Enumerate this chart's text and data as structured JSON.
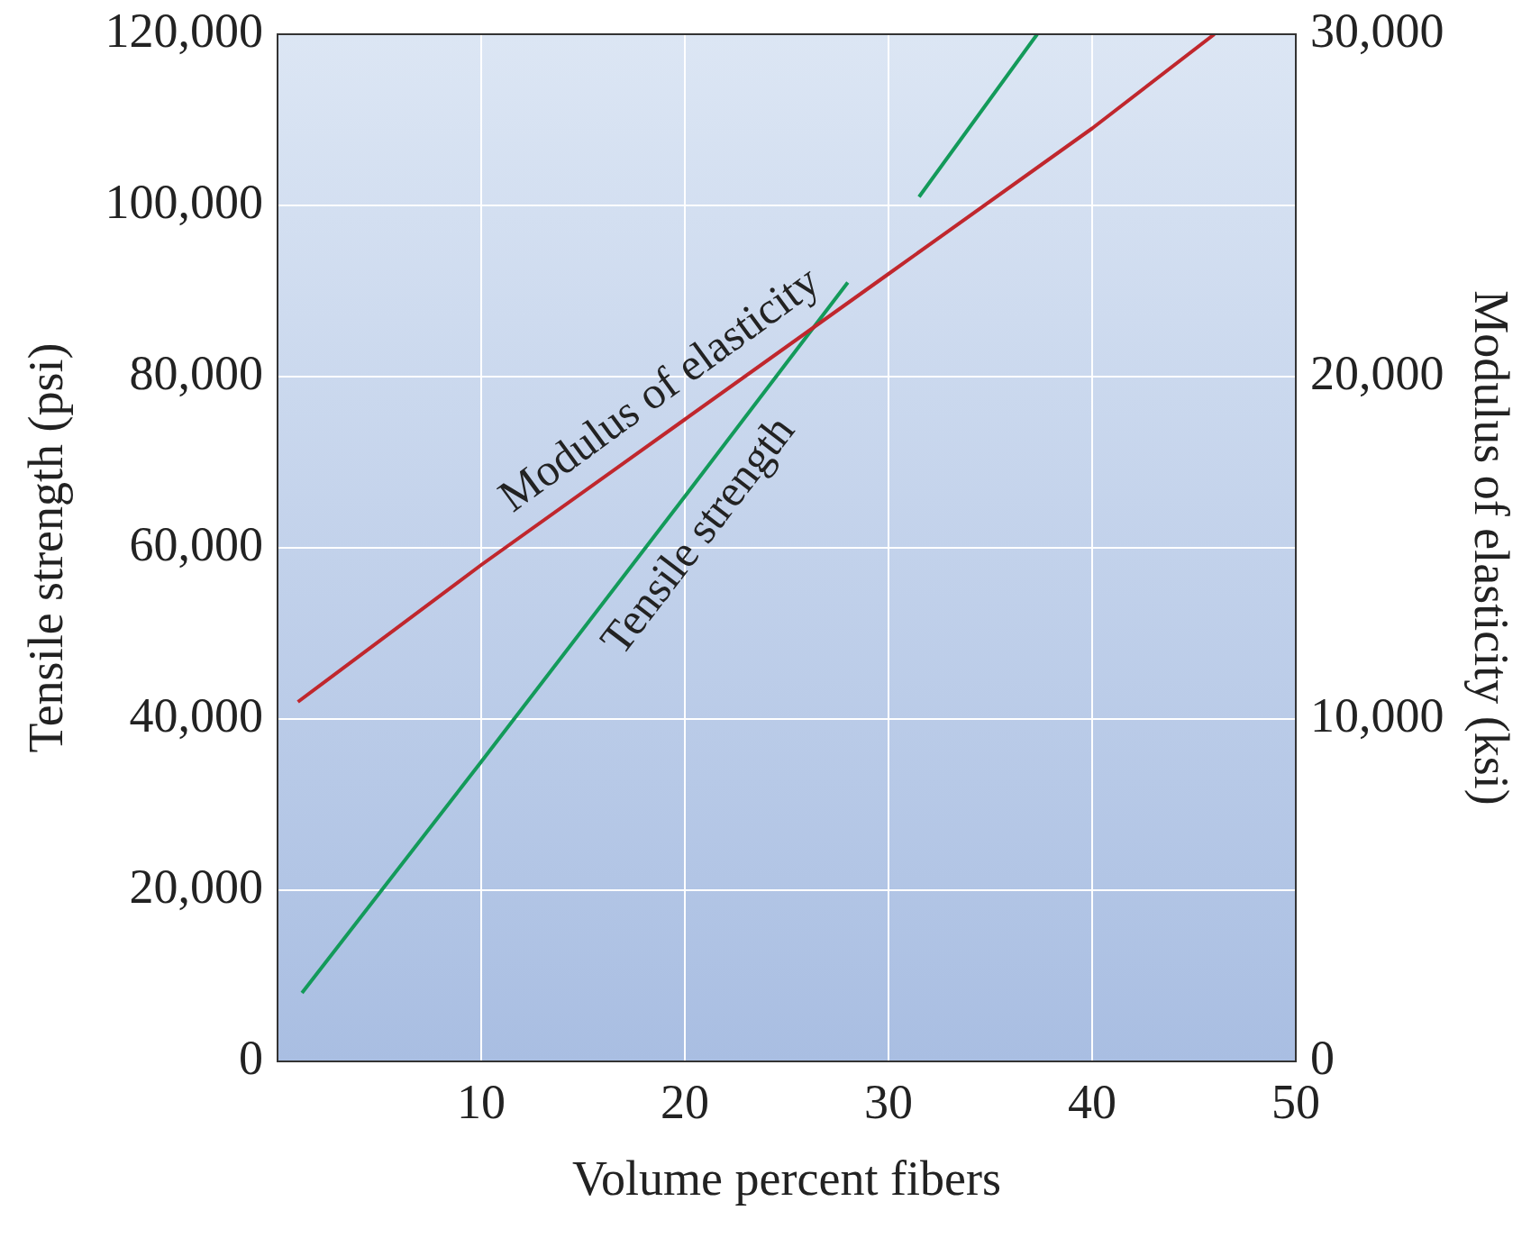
{
  "chart_data": {
    "type": "line",
    "xlabel": "Volume percent fibers",
    "ylabel": "Tensile strength (psi)",
    "y2label": "Modulus of elasticity (ksi)",
    "xlim": [
      0,
      50
    ],
    "xticks": [
      10,
      20,
      30,
      40,
      50
    ],
    "ylim": [
      0,
      120000
    ],
    "yticks": [
      0,
      {
        "value": 20000,
        "label": "20,000"
      },
      {
        "value": 40000,
        "label": "40,000"
      },
      {
        "value": 60000,
        "label": "60,000"
      },
      {
        "value": 80000,
        "label": "80,000"
      },
      {
        "value": 100000,
        "label": "100,000"
      },
      {
        "value": 120000,
        "label": "120,000"
      }
    ],
    "y2lim": [
      0,
      30000
    ],
    "y2ticks": [
      0,
      {
        "value": 10000,
        "label": "10,000"
      },
      {
        "value": 20000,
        "label": "20,000"
      },
      {
        "value": 30000,
        "label": "30,000"
      }
    ],
    "grid": true,
    "legend": false,
    "marker": "none",
    "line_style": "solid",
    "series": [
      {
        "color": "#c0272d",
        "axis": "y2",
        "x": [
          1,
          10,
          20,
          30,
          40,
          46
        ],
        "values": [
          10500,
          14500,
          18750,
          23000,
          27250,
          30000
        ]
      },
      {
        "color": "#139a5a",
        "axis": "y",
        "x": [
          1.2,
          10,
          20,
          28,
          30,
          31.5,
          37.3
        ],
        "values": [
          8000,
          35000,
          66000,
          91000,
          null,
          101000,
          120000
        ]
      }
    ],
    "annotations": [
      "Modulus of elasticity",
      "Tensile strength"
    ]
  }
}
